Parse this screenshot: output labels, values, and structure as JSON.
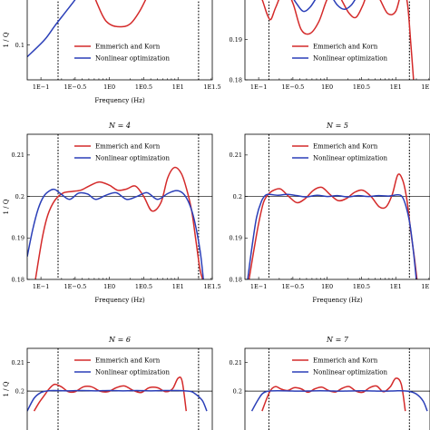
{
  "colors": {
    "emmerich": "#d42a2a",
    "nonlinear": "#2b3fb8"
  },
  "chart_data": [
    {
      "type": "line",
      "title": "",
      "xlabel": "Frequency (Hz)",
      "ylabel": "1 / Q",
      "xscale": "log10",
      "xlim": [
        -1.2,
        1.5
      ],
      "xticks": [
        {
          "v": -1,
          "label": "1E−1"
        },
        {
          "v": -0.5,
          "label": "1E−0.5"
        },
        {
          "v": 0,
          "label": "1E0"
        },
        {
          "v": 0.5,
          "label": "1E0.5"
        },
        {
          "v": 1,
          "label": "1E1"
        },
        {
          "v": 1.5,
          "label": "1E1.5"
        }
      ],
      "ylim": [
        0.075,
        0.14
      ],
      "yticks": [
        {
          "v": 0.1,
          "label": "0.1"
        }
      ],
      "ref_y": null,
      "band": [
        -0.75,
        1.3
      ],
      "legend": {
        "position": "lower-center",
        "entries": [
          "Emmerich and Korn",
          "Nonlinear optimization"
        ]
      },
      "series": [
        {
          "name": "Emmerich and Korn",
          "color": "emmerich",
          "x": [
            -0.25,
            -0.1,
            0,
            0.15,
            0.3,
            0.45,
            0.6
          ],
          "y": [
            0.138,
            0.121,
            0.115,
            0.113,
            0.115,
            0.125,
            0.14
          ]
        },
        {
          "name": "Nonlinear optimization",
          "color": "nonlinear",
          "x": [
            -1.2,
            -0.95,
            -0.8,
            -0.65,
            -0.5,
            -0.4
          ],
          "y": [
            0.0915,
            0.1035,
            0.1135,
            0.123,
            0.1325,
            0.14
          ]
        }
      ]
    },
    {
      "type": "line",
      "title": "",
      "xlabel": "",
      "ylabel": "",
      "xscale": "log10",
      "xlim": [
        -1.2,
        1.5
      ],
      "xticks": [
        {
          "v": -1,
          "label": "1E−1"
        },
        {
          "v": -0.5,
          "label": "1E−0.5"
        },
        {
          "v": 0,
          "label": "1E0"
        },
        {
          "v": 0.5,
          "label": "1E0.5"
        },
        {
          "v": 1,
          "label": "1E1"
        },
        {
          "v": 1.5,
          "label": "1E1.5"
        }
      ],
      "ylim": [
        0.18,
        0.2025
      ],
      "yticks": [
        {
          "v": 0.18,
          "label": "0.18"
        },
        {
          "v": 0.19,
          "label": "0.19"
        }
      ],
      "ref_y": null,
      "band": [
        -0.85,
        1.2
      ],
      "legend": {
        "position": "lower-center",
        "entries": [
          "Emmerich and Korn",
          "Nonlinear optimization"
        ]
      },
      "series": [
        {
          "name": "Emmerich and Korn",
          "color": "emmerich",
          "x": [
            -1.0,
            -0.93,
            -0.87,
            -0.82,
            -0.75,
            -0.62,
            -0.5,
            -0.38,
            -0.25,
            -0.12,
            0,
            0.12,
            0.22,
            0.32,
            0.42,
            0.52,
            0.62,
            0.75,
            0.88,
            1.0,
            1.1,
            1.17,
            1.22,
            1.26
          ],
          "y": [
            0.2025,
            0.199,
            0.196,
            0.195,
            0.198,
            0.2025,
            0.199,
            0.1925,
            0.1915,
            0.1945,
            0.2,
            0.2025,
            0.1995,
            0.1965,
            0.1955,
            0.1985,
            0.2025,
            0.2005,
            0.1965,
            0.197,
            0.2025,
            0.199,
            0.189,
            0.18
          ]
        },
        {
          "name": "Nonlinear optimization",
          "color": "nonlinear",
          "x": [
            -0.65,
            -0.55,
            -0.45,
            -0.35,
            -0.25,
            -0.15,
            -0.05,
            0.05,
            0.15,
            0.25,
            0.35,
            0.45,
            0.55,
            0.65,
            0.75
          ],
          "y": [
            0.2025,
            0.2015,
            0.199,
            0.197,
            0.198,
            0.2005,
            0.2025,
            0.201,
            0.1985,
            0.1975,
            0.1985,
            0.201,
            0.2025,
            0.2015,
            0.2025
          ]
        }
      ]
    },
    {
      "type": "line",
      "title": "N = 4",
      "xlabel": "Frequency (Hz)",
      "ylabel": "1 / Q",
      "xscale": "log10",
      "xlim": [
        -1.2,
        1.5
      ],
      "xticks": [
        {
          "v": -1,
          "label": "1E−1"
        },
        {
          "v": -0.5,
          "label": "1E−0.5"
        },
        {
          "v": 0,
          "label": "1E0"
        },
        {
          "v": 0.5,
          "label": "1E0.5"
        },
        {
          "v": 1,
          "label": "1E1"
        },
        {
          "v": 1.5,
          "label": "1E1.5"
        }
      ],
      "ylim": [
        0.18,
        0.215
      ],
      "yticks": [
        {
          "v": 0.18,
          "label": "0.18"
        },
        {
          "v": 0.19,
          "label": "0.19"
        },
        {
          "v": 0.2,
          "label": "0.2"
        },
        {
          "v": 0.21,
          "label": "0.21"
        }
      ],
      "ref_y": 0.2,
      "band": [
        -0.75,
        1.3
      ],
      "legend": {
        "position": "top-center",
        "entries": [
          "Emmerich and Korn",
          "Nonlinear optimization"
        ]
      },
      "series": [
        {
          "name": "Emmerich and Korn",
          "color": "emmerich",
          "x": [
            -1.08,
            -0.98,
            -0.9,
            -0.8,
            -0.68,
            -0.55,
            -0.42,
            -0.3,
            -0.15,
            0,
            0.12,
            0.25,
            0.38,
            0.5,
            0.62,
            0.75,
            0.85,
            0.95,
            1.05,
            1.13,
            1.2,
            1.26,
            1.32,
            1.36
          ],
          "y": [
            0.18,
            0.19,
            0.1955,
            0.199,
            0.2008,
            0.2012,
            0.2015,
            0.2025,
            0.2035,
            0.2027,
            0.2015,
            0.2018,
            0.2025,
            0.2,
            0.1965,
            0.1985,
            0.2045,
            0.207,
            0.2055,
            0.2015,
            0.1965,
            0.1895,
            0.1825,
            0.18
          ]
        },
        {
          "name": "Nonlinear optimization",
          "color": "nonlinear",
          "x": [
            -1.2,
            -1.12,
            -1.04,
            -0.96,
            -0.88,
            -0.8,
            -0.7,
            -0.58,
            -0.45,
            -0.32,
            -0.2,
            -0.05,
            0.1,
            0.25,
            0.4,
            0.55,
            0.7,
            0.85,
            0.97,
            1.07,
            1.15,
            1.22,
            1.28,
            1.33,
            1.37
          ],
          "y": [
            0.1855,
            0.192,
            0.197,
            0.2,
            0.2013,
            0.2017,
            0.2005,
            0.1993,
            0.2008,
            0.2006,
            0.1993,
            0.2003,
            0.2009,
            0.1993,
            0.2,
            0.2009,
            0.1993,
            0.2007,
            0.2014,
            0.2008,
            0.1988,
            0.1955,
            0.191,
            0.186,
            0.18
          ]
        }
      ]
    },
    {
      "type": "line",
      "title": "N = 5",
      "xlabel": "Frequency (Hz)",
      "ylabel": "",
      "xscale": "log10",
      "xlim": [
        -1.2,
        1.5
      ],
      "xticks": [
        {
          "v": -1,
          "label": "1E−1"
        },
        {
          "v": -0.5,
          "label": "1E−0.5"
        },
        {
          "v": 0,
          "label": "1E0"
        },
        {
          "v": 0.5,
          "label": "1E0.5"
        },
        {
          "v": 1,
          "label": "1E1"
        },
        {
          "v": 1.5,
          "label": "1E1.5"
        }
      ],
      "ylim": [
        0.18,
        0.215
      ],
      "yticks": [
        {
          "v": 0.18,
          "label": "0.18"
        },
        {
          "v": 0.19,
          "label": "0.19"
        },
        {
          "v": 0.2,
          "label": "0.2"
        },
        {
          "v": 0.21,
          "label": "0.21"
        }
      ],
      "ref_y": 0.2,
      "band": [
        -0.85,
        1.2
      ],
      "legend": {
        "position": "top-center",
        "entries": [
          "Emmerich and Korn",
          "Nonlinear optimization"
        ]
      },
      "series": [
        {
          "name": "Emmerich and Korn",
          "color": "emmerich",
          "x": [
            -1.14,
            -1.07,
            -1.0,
            -0.93,
            -0.86,
            -0.78,
            -0.68,
            -0.56,
            -0.44,
            -0.32,
            -0.2,
            -0.08,
            0.04,
            0.16,
            0.28,
            0.4,
            0.52,
            0.64,
            0.76,
            0.86,
            0.95,
            1.03,
            1.1,
            1.16,
            1.22,
            1.27,
            1.31
          ],
          "y": [
            0.18,
            0.187,
            0.1935,
            0.1985,
            0.2005,
            0.2015,
            0.2018,
            0.2,
            0.1985,
            0.1995,
            0.2015,
            0.2022,
            0.2005,
            0.199,
            0.1995,
            0.201,
            0.2015,
            0.2,
            0.1975,
            0.1975,
            0.2005,
            0.2052,
            0.204,
            0.1995,
            0.1915,
            0.1855,
            0.18
          ]
        },
        {
          "name": "Nonlinear optimization",
          "color": "nonlinear",
          "x": [
            -1.16,
            -1.1,
            -1.03,
            -0.96,
            -0.9,
            -0.84,
            -0.72,
            -0.58,
            -0.44,
            -0.3,
            -0.15,
            0,
            0.15,
            0.3,
            0.45,
            0.6,
            0.75,
            0.9,
            1.03,
            1.1,
            1.16,
            1.21,
            1.26,
            1.3
          ],
          "y": [
            0.18,
            0.1875,
            0.195,
            0.1988,
            0.2003,
            0.2005,
            0.2003,
            0.2005,
            0.2002,
            0.1999,
            0.2003,
            0.2,
            0.2002,
            0.1999,
            0.2002,
            0.2,
            0.2002,
            0.2001,
            0.2004,
            0.1998,
            0.197,
            0.193,
            0.1865,
            0.18
          ]
        }
      ]
    },
    {
      "type": "line",
      "title": "N = 6",
      "xlabel": "",
      "ylabel": "1 / Q",
      "xscale": "log10",
      "xlim": [
        -1.2,
        1.5
      ],
      "xticks": [],
      "ylim": [
        0.18,
        0.215
      ],
      "yticks": [
        {
          "v": 0.2,
          "label": "0.2"
        },
        {
          "v": 0.21,
          "label": "0.21"
        }
      ],
      "ref_y": 0.2,
      "band": [
        -0.75,
        1.3
      ],
      "legend": {
        "position": "top-center",
        "entries": [
          "Emmerich and Korn",
          "Nonlinear optimization"
        ]
      },
      "series": [
        {
          "name": "Emmerich and Korn",
          "color": "emmerich",
          "x": [
            -1.1,
            -1.02,
            -0.95,
            -0.88,
            -0.8,
            -0.7,
            -0.6,
            -0.5,
            -0.38,
            -0.26,
            -0.14,
            -0.02,
            0.1,
            0.22,
            0.34,
            0.46,
            0.58,
            0.7,
            0.82,
            0.92,
            1.0,
            1.06,
            1.12
          ],
          "y": [
            0.193,
            0.1962,
            0.1985,
            0.2008,
            0.2024,
            0.2015,
            0.1998,
            0.1998,
            0.2015,
            0.2015,
            0.2,
            0.1998,
            0.2012,
            0.2018,
            0.2003,
            0.1995,
            0.2012,
            0.2012,
            0.1998,
            0.2008,
            0.2045,
            0.2035,
            0.193
          ]
        },
        {
          "name": "Nonlinear optimization",
          "color": "nonlinear",
          "x": [
            -1.2,
            -1.1,
            -1.0,
            -0.9,
            -0.8,
            -0.6,
            -0.4,
            -0.2,
            0,
            0.2,
            0.4,
            0.6,
            0.8,
            1.0,
            1.1,
            1.2,
            1.28,
            1.36,
            1.42
          ],
          "y": [
            0.193,
            0.1975,
            0.1995,
            0.2001,
            0.2002,
            0.2001,
            0.2002,
            0.2001,
            0.2002,
            0.2001,
            0.2002,
            0.2001,
            0.2002,
            0.2002,
            0.2001,
            0.1998,
            0.1985,
            0.1965,
            0.193
          ]
        }
      ]
    },
    {
      "type": "line",
      "title": "N = 7",
      "xlabel": "",
      "ylabel": "",
      "xscale": "log10",
      "xlim": [
        -1.2,
        1.5
      ],
      "xticks": [],
      "ylim": [
        0.18,
        0.215
      ],
      "yticks": [
        {
          "v": 0.2,
          "label": "0.2"
        },
        {
          "v": 0.21,
          "label": "0.21"
        }
      ],
      "ref_y": 0.2,
      "band": [
        -0.85,
        1.2
      ],
      "legend": {
        "position": "top-center",
        "entries": [
          "Emmerich and Korn",
          "Nonlinear optimization"
        ]
      },
      "series": [
        {
          "name": "Emmerich and Korn",
          "color": "emmerich",
          "x": [
            -0.95,
            -0.88,
            -0.82,
            -0.75,
            -0.68,
            -0.58,
            -0.48,
            -0.38,
            -0.28,
            -0.18,
            -0.08,
            0.02,
            0.12,
            0.22,
            0.32,
            0.42,
            0.52,
            0.62,
            0.72,
            0.82,
            0.92,
            1.0,
            1.08,
            1.14
          ],
          "y": [
            0.193,
            0.1975,
            0.2005,
            0.2016,
            0.2008,
            0.2002,
            0.2012,
            0.2008,
            0.1996,
            0.2008,
            0.2014,
            0.2002,
            0.1997,
            0.201,
            0.2016,
            0.2,
            0.1996,
            0.2012,
            0.2018,
            0.1998,
            0.2015,
            0.2045,
            0.2025,
            0.193
          ]
        },
        {
          "name": "Nonlinear optimization",
          "color": "nonlinear",
          "x": [
            -1.1,
            -1.02,
            -0.95,
            -0.88,
            -0.8,
            -0.6,
            -0.4,
            -0.2,
            0,
            0.2,
            0.4,
            0.6,
            0.8,
            1.0,
            1.1,
            1.2,
            1.3,
            1.4,
            1.46
          ],
          "y": [
            0.193,
            0.1965,
            0.199,
            0.1999,
            0.2001,
            0.2001,
            0.2,
            0.2001,
            0.2001,
            0.2,
            0.2001,
            0.2001,
            0.2,
            0.2001,
            0.2001,
            0.1999,
            0.199,
            0.1965,
            0.193
          ]
        }
      ]
    }
  ]
}
